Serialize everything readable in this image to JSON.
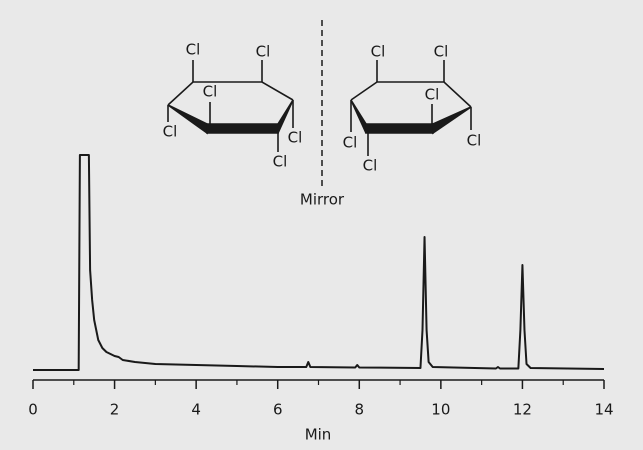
{
  "chart_data": {
    "type": "line",
    "x_label": "Min",
    "xlim": [
      0,
      14
    ],
    "xticks": [
      0,
      2,
      4,
      6,
      8,
      10,
      12,
      14
    ],
    "annotations": {
      "mirror": "Mirror",
      "chlorine_labels": [
        "Cl",
        "Cl",
        "Cl",
        "Cl",
        "Cl",
        "Cl",
        "Cl",
        "Cl",
        "Cl",
        "Cl",
        "Cl",
        "Cl"
      ]
    },
    "series": [
      {
        "color": "#1a1a1a",
        "x": [
          0,
          1.12,
          1.15,
          1.37,
          1.4,
          1.45,
          1.5,
          1.6,
          1.7,
          1.8,
          2.0,
          2.1,
          2.2,
          2.5,
          3,
          4,
          5,
          6,
          6.7,
          6.75,
          6.8,
          7.9,
          7.95,
          8.0,
          9.5,
          9.55,
          9.6,
          9.65,
          9.7,
          9.8,
          11.35,
          11.4,
          11.45,
          11.9,
          11.95,
          12.0,
          12.05,
          12.1,
          12.2,
          14
        ],
        "values": [
          0,
          0,
          215,
          215,
          100,
          70,
          50,
          30,
          22,
          18,
          14,
          13,
          10,
          8,
          6,
          5,
          4,
          3,
          3,
          8,
          3,
          2.5,
          5,
          2.5,
          2,
          40,
          133,
          40,
          8,
          3,
          1.5,
          3,
          1.5,
          1.5,
          40,
          105,
          40,
          6,
          2,
          1
        ]
      }
    ]
  }
}
